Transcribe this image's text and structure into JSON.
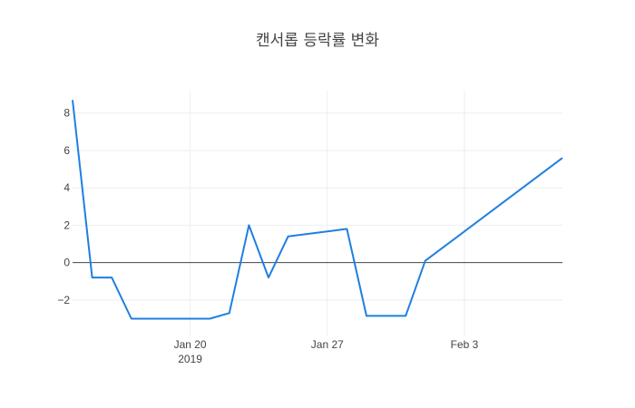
{
  "chart_data": {
    "type": "line",
    "title": "캔서롭 등락률 변화",
    "xlabel": "",
    "ylabel": "",
    "x_tick_labels": [
      {
        "date": "2019-01-20",
        "label": "Jan 20",
        "sublabel": "2019"
      },
      {
        "date": "2019-01-27",
        "label": "Jan 27",
        "sublabel": ""
      },
      {
        "date": "2019-02-03",
        "label": "Feb 3",
        "sublabel": ""
      }
    ],
    "y_ticks": [
      -2,
      0,
      2,
      4,
      6,
      8
    ],
    "y_tick_labels": [
      "−2",
      "0",
      "2",
      "4",
      "6",
      "8"
    ],
    "xlim": [
      "2019-01-14",
      "2019-02-08"
    ],
    "ylim": [
      -3.9,
      9.2
    ],
    "grid": true,
    "zero_line": true,
    "line_color": "#1f7fe0",
    "series": [
      {
        "x": [
          "2019-01-14",
          "2019-01-15",
          "2019-01-16",
          "2019-01-17",
          "2019-01-18",
          "2019-01-21",
          "2019-01-22",
          "2019-01-23",
          "2019-01-24",
          "2019-01-25",
          "2019-01-28",
          "2019-01-29",
          "2019-01-31",
          "2019-02-01",
          "2019-02-08"
        ],
        "y": [
          8.7,
          -0.8,
          -0.8,
          -3.0,
          -3.0,
          -3.0,
          -2.7,
          2.0,
          -0.8,
          1.4,
          1.8,
          -2.85,
          -2.85,
          0.1,
          5.6
        ]
      }
    ]
  }
}
